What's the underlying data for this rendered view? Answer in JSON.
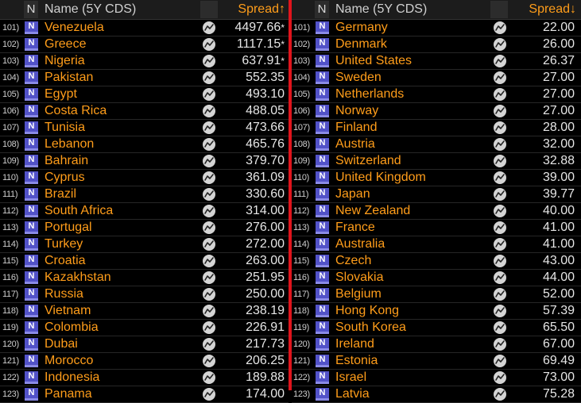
{
  "header": {
    "n_label": "N",
    "name_label": "Name (5Y CDS)",
    "left_sort_label": "Spread↑",
    "right_sort_label": "Spread↓"
  },
  "icons": {
    "news": "news-icon",
    "chart": "chart-icon"
  },
  "colors": {
    "name_text": "#ff9d1a",
    "divider": "#e0141c",
    "news_icon": "#5252c8"
  },
  "left_rows": [
    {
      "num": "101)",
      "name": "Venezuela",
      "value": "4497.66",
      "flag": "*"
    },
    {
      "num": "102)",
      "name": "Greece",
      "value": "1117.15",
      "flag": "*"
    },
    {
      "num": "103)",
      "name": "Nigeria",
      "value": "637.91",
      "flag": "*"
    },
    {
      "num": "104)",
      "name": "Pakistan",
      "value": "552.35",
      "flag": ""
    },
    {
      "num": "105)",
      "name": "Egypt",
      "value": "493.10",
      "flag": ""
    },
    {
      "num": "106)",
      "name": "Costa Rica",
      "value": "488.05",
      "flag": ""
    },
    {
      "num": "107)",
      "name": "Tunisia",
      "value": "473.66",
      "flag": ""
    },
    {
      "num": "108)",
      "name": "Lebanon",
      "value": "465.76",
      "flag": ""
    },
    {
      "num": "109)",
      "name": "Bahrain",
      "value": "379.70",
      "flag": ""
    },
    {
      "num": "110)",
      "name": "Cyprus",
      "value": "361.09",
      "flag": ""
    },
    {
      "num": "111)",
      "name": "Brazil",
      "value": "330.60",
      "flag": ""
    },
    {
      "num": "112)",
      "name": "South Africa",
      "value": "314.00",
      "flag": ""
    },
    {
      "num": "113)",
      "name": "Portugal",
      "value": "276.00",
      "flag": ""
    },
    {
      "num": "114)",
      "name": "Turkey",
      "value": "272.00",
      "flag": ""
    },
    {
      "num": "115)",
      "name": "Croatia",
      "value": "263.00",
      "flag": ""
    },
    {
      "num": "116)",
      "name": "Kazakhstan",
      "value": "251.95",
      "flag": ""
    },
    {
      "num": "117)",
      "name": "Russia",
      "value": "250.00",
      "flag": ""
    },
    {
      "num": "118)",
      "name": "Vietnam",
      "value": "238.19",
      "flag": ""
    },
    {
      "num": "119)",
      "name": "Colombia",
      "value": "226.91",
      "flag": ""
    },
    {
      "num": "120)",
      "name": "Dubai",
      "value": "217.73",
      "flag": ""
    },
    {
      "num": "121)",
      "name": "Morocco",
      "value": "206.25",
      "flag": ""
    },
    {
      "num": "122)",
      "name": "Indonesia",
      "value": "189.88",
      "flag": ""
    },
    {
      "num": "123)",
      "name": "Panama",
      "value": "174.00",
      "flag": ""
    }
  ],
  "right_rows": [
    {
      "num": "101)",
      "name": "Germany",
      "value": "22.00",
      "flag": ""
    },
    {
      "num": "102)",
      "name": "Denmark",
      "value": "26.00",
      "flag": ""
    },
    {
      "num": "103)",
      "name": "United States",
      "value": "26.37",
      "flag": ""
    },
    {
      "num": "104)",
      "name": "Sweden",
      "value": "27.00",
      "flag": ""
    },
    {
      "num": "105)",
      "name": "Netherlands",
      "value": "27.00",
      "flag": ""
    },
    {
      "num": "106)",
      "name": "Norway",
      "value": "27.00",
      "flag": ""
    },
    {
      "num": "107)",
      "name": "Finland",
      "value": "28.00",
      "flag": ""
    },
    {
      "num": "108)",
      "name": "Austria",
      "value": "32.00",
      "flag": ""
    },
    {
      "num": "109)",
      "name": "Switzerland",
      "value": "32.88",
      "flag": ""
    },
    {
      "num": "110)",
      "name": "United Kingdom",
      "value": "39.00",
      "flag": ""
    },
    {
      "num": "111)",
      "name": "Japan",
      "value": "39.77",
      "flag": ""
    },
    {
      "num": "112)",
      "name": "New Zealand",
      "value": "40.00",
      "flag": ""
    },
    {
      "num": "113)",
      "name": "France",
      "value": "41.00",
      "flag": ""
    },
    {
      "num": "114)",
      "name": "Australia",
      "value": "41.00",
      "flag": ""
    },
    {
      "num": "115)",
      "name": "Czech",
      "value": "43.00",
      "flag": ""
    },
    {
      "num": "116)",
      "name": "Slovakia",
      "value": "44.00",
      "flag": ""
    },
    {
      "num": "117)",
      "name": "Belgium",
      "value": "52.00",
      "flag": ""
    },
    {
      "num": "118)",
      "name": "Hong Kong",
      "value": "57.39",
      "flag": ""
    },
    {
      "num": "119)",
      "name": "South Korea",
      "value": "65.50",
      "flag": ""
    },
    {
      "num": "120)",
      "name": "Ireland",
      "value": "67.00",
      "flag": ""
    },
    {
      "num": "121)",
      "name": "Estonia",
      "value": "69.49",
      "flag": ""
    },
    {
      "num": "122)",
      "name": "Israel",
      "value": "73.00",
      "flag": ""
    },
    {
      "num": "123)",
      "name": "Latvia",
      "value": "75.28",
      "flag": ""
    }
  ]
}
